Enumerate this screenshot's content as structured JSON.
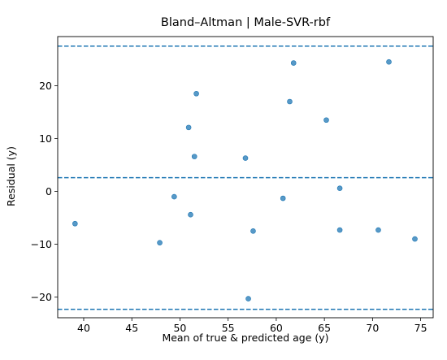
{
  "chart_data": {
    "type": "scatter",
    "title": "Bland–Altman | Male-SVR-rbf",
    "xlabel": "Mean of true & predicted age (y)",
    "ylabel": "Residual (y)",
    "xlim": [
      37.3,
      76.3
    ],
    "ylim": [
      -23.9,
      29.3
    ],
    "xticks": [
      40,
      45,
      50,
      55,
      60,
      65,
      70,
      75
    ],
    "yticks": [
      -20,
      -10,
      0,
      10,
      20
    ],
    "ytick_labels": [
      "−20",
      "−10",
      "0",
      "10",
      "20"
    ],
    "grid": false,
    "point_color": "#1f77b4",
    "line_color": "#1f77b4",
    "reference_lines": [
      27.5,
      2.6,
      -22.3
    ],
    "points": [
      {
        "x": 39.1,
        "y": -6.1
      },
      {
        "x": 47.9,
        "y": -9.7
      },
      {
        "x": 49.4,
        "y": -1.0
      },
      {
        "x": 50.9,
        "y": 12.1
      },
      {
        "x": 51.1,
        "y": -4.4
      },
      {
        "x": 51.5,
        "y": 6.6
      },
      {
        "x": 51.7,
        "y": 18.5
      },
      {
        "x": 56.8,
        "y": 6.3
      },
      {
        "x": 57.1,
        "y": -20.3
      },
      {
        "x": 57.6,
        "y": -7.5
      },
      {
        "x": 60.7,
        "y": -1.3
      },
      {
        "x": 61.4,
        "y": 17.0
      },
      {
        "x": 61.8,
        "y": 24.3
      },
      {
        "x": 65.2,
        "y": 13.5
      },
      {
        "x": 66.6,
        "y": 0.6
      },
      {
        "x": 66.6,
        "y": -7.3
      },
      {
        "x": 70.6,
        "y": -7.3
      },
      {
        "x": 71.7,
        "y": 24.5
      },
      {
        "x": 74.4,
        "y": -9.0
      }
    ]
  }
}
